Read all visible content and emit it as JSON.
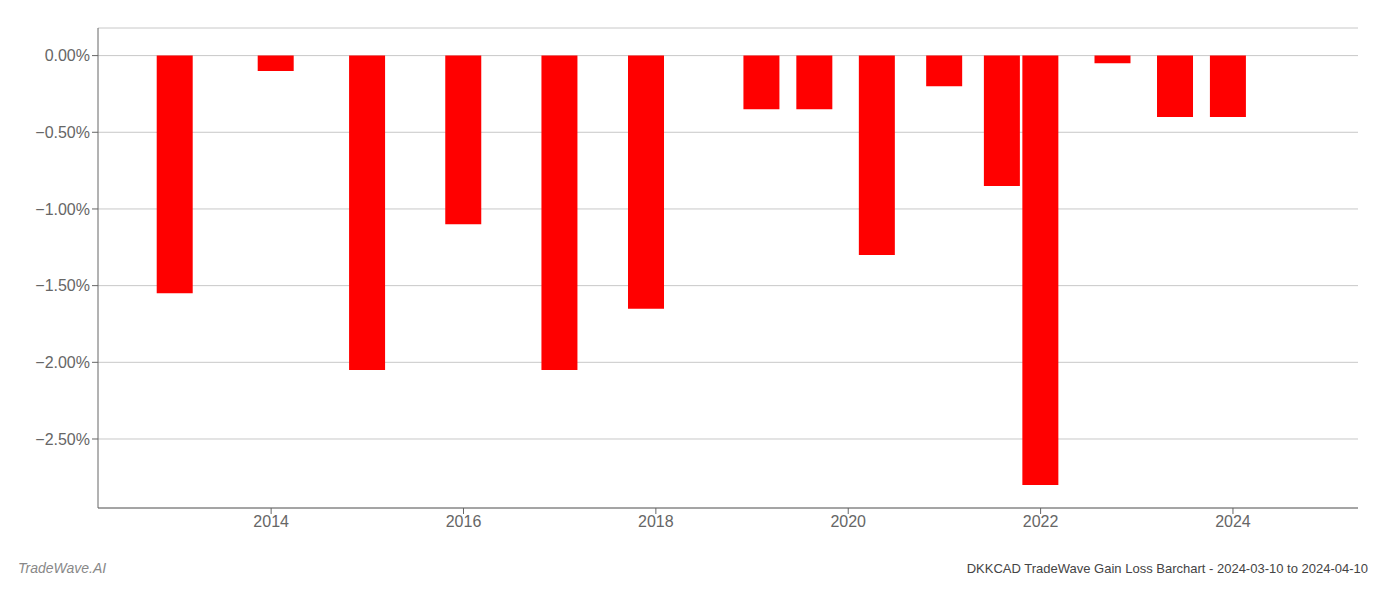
{
  "chart_data": {
    "type": "bar",
    "title": "DKKCAD TradeWave Gain Loss Barchart - 2024-03-10 to 2024-04-10",
    "annotations": [
      "TradeWave.AI"
    ],
    "x": [
      2013.0,
      2014.05,
      2015.0,
      2016.0,
      2017.0,
      2017.9,
      2019.1,
      2019.65,
      2020.3,
      2021.0,
      2021.6,
      2022.0,
      2022.75,
      2023.4,
      2023.95
    ],
    "values": [
      -0.0155,
      -0.001,
      -0.0205,
      -0.011,
      -0.0205,
      -0.0165,
      -0.0035,
      -0.0035,
      -0.013,
      -0.002,
      -0.0085,
      -0.028,
      -0.0005,
      -0.004,
      -0.004
    ],
    "color": "#ff0000",
    "xlim": [
      2012.2,
      2025.3
    ],
    "xticks": [
      2014,
      2016,
      2018,
      2020,
      2022,
      2024
    ],
    "ylim": [
      -0.0295,
      0.0018
    ],
    "yticks": [
      {
        "value": 0.0,
        "label": "0.00%"
      },
      {
        "value": -0.005,
        "label": "−0.50%"
      },
      {
        "value": -0.01,
        "label": "−1.00%"
      },
      {
        "value": -0.015,
        "label": "−1.50%"
      },
      {
        "value": -0.02,
        "label": "−2.00%"
      },
      {
        "value": -0.025,
        "label": "−2.50%"
      }
    ],
    "grid": true
  }
}
